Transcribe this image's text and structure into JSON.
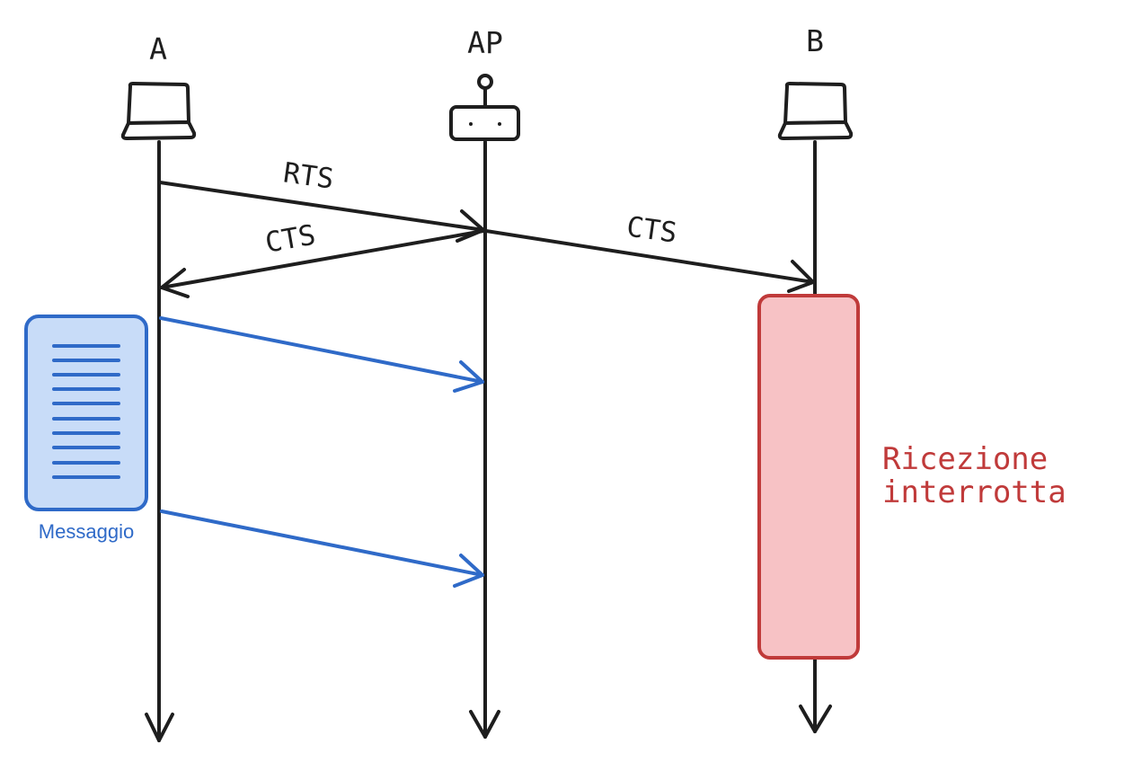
{
  "participants": {
    "a": {
      "label": "A",
      "icon": "laptop-icon"
    },
    "ap": {
      "label": "AP",
      "icon": "router-icon"
    },
    "b": {
      "label": "B",
      "icon": "laptop-icon"
    }
  },
  "messages": {
    "rts": {
      "label": "RTS",
      "from": "A",
      "to": "AP"
    },
    "cts_to_a": {
      "label": "CTS",
      "from": "AP",
      "to": "A"
    },
    "cts_to_b": {
      "label": "CTS",
      "from": "AP",
      "to": "B"
    },
    "data_1": {
      "from": "A",
      "to": "AP"
    },
    "data_2": {
      "from": "A",
      "to": "AP"
    }
  },
  "document": {
    "label": "Messaggio",
    "icon": "document-icon"
  },
  "interruption": {
    "label_line1": "Ricezione",
    "label_line2": "interrotta"
  },
  "colors": {
    "stroke": "#1e1e1e",
    "data_blue": "#2f6ac8",
    "doc_fill": "#c8dcf8",
    "alert_red": "#c03a3a",
    "alert_fill": "#f7c2c5"
  }
}
